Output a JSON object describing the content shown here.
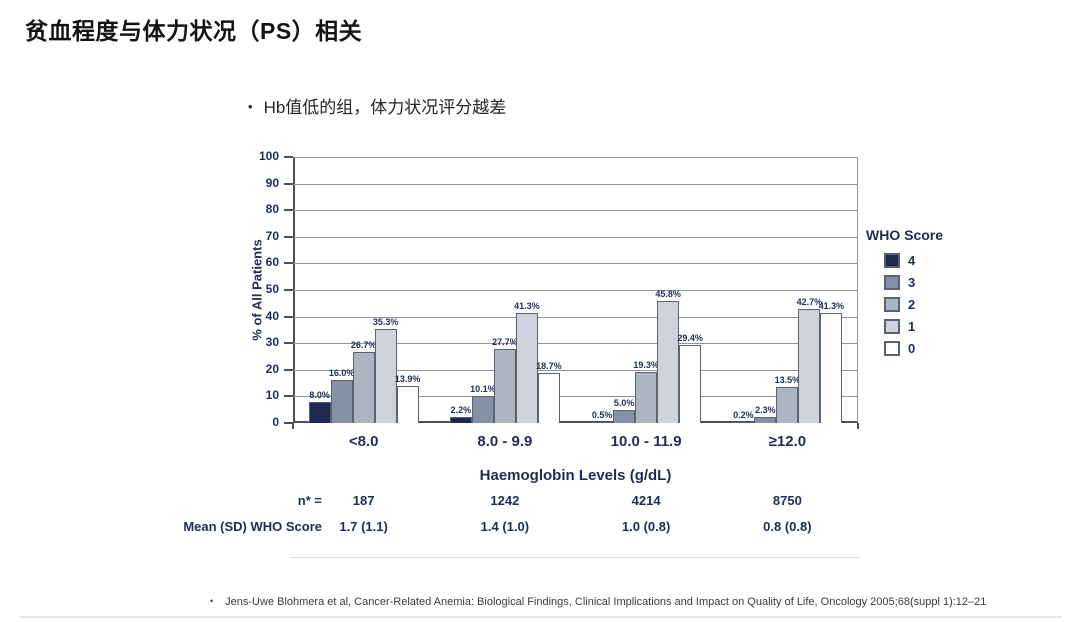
{
  "title": "贫血程度与体力状况（PS）相关",
  "bullet": "Hb值低的组，体力状况评分越差",
  "chart_data": {
    "type": "bar",
    "title": "",
    "xlabel": "Haemoglobin Levels (g/dL)",
    "ylabel": "% of All Patients",
    "ylim": [
      0,
      100
    ],
    "ytick_step": 10,
    "grid": true,
    "legend_title": "WHO Score",
    "legend_position": "right",
    "categories": [
      "<8.0",
      "8.0 - 9.9",
      "10.0 - 11.9",
      "≥12.0"
    ],
    "series": [
      {
        "name": "4",
        "color": "#1b2a4e",
        "values": [
          8.0,
          2.2,
          0.5,
          0.2
        ]
      },
      {
        "name": "3",
        "color": "#8591a6",
        "values": [
          16.0,
          10.1,
          5.0,
          2.3
        ]
      },
      {
        "name": "2",
        "color": "#aeb5c2",
        "values": [
          26.7,
          27.7,
          19.3,
          13.5
        ]
      },
      {
        "name": "1",
        "color": "#ced3db",
        "values": [
          35.3,
          41.3,
          45.8,
          42.7
        ]
      },
      {
        "name": "0",
        "color": "#ffffff",
        "values": [
          13.9,
          18.7,
          29.4,
          41.3
        ]
      }
    ],
    "data_label_suffix": "%"
  },
  "summary_table": {
    "rows": [
      {
        "label": "n* =",
        "values": [
          "187",
          "1242",
          "4214",
          "8750"
        ]
      },
      {
        "label": "Mean (SD) WHO Score",
        "values": [
          "1.7 (1.1)",
          "1.4 (1.0)",
          "1.0 (0.8)",
          "0.8 (0.8)"
        ]
      }
    ]
  },
  "citation": "Jens-Uwe Blohmera et al, Cancer-Related Anemia: Biological Findings, Clinical Implications and Impact on Quality of Life, Oncology 2005;68(suppl 1):12–21",
  "colors": {
    "axis_text": "#1f2c54",
    "grid": "#8e939c",
    "axis": "#4a4f5a",
    "bar_border": "#5a6170",
    "table_line": "#dcdee1"
  }
}
